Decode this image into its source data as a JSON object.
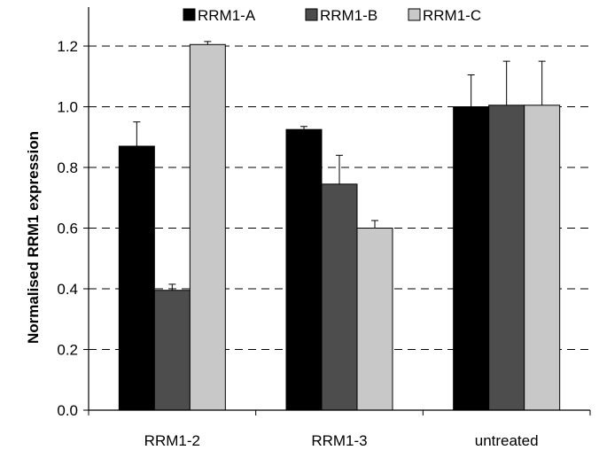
{
  "chart_data": {
    "type": "bar",
    "title": "",
    "xlabel": "",
    "ylabel": "Normalised RRM1 expression",
    "ylim": [
      0,
      1.3
    ],
    "yticks": [
      "0.0",
      "0.2",
      "0.4",
      "0.6",
      "0.8",
      "1.0",
      "1.2"
    ],
    "ytick_values": [
      0,
      0.2,
      0.4,
      0.6,
      0.8,
      1.0,
      1.2
    ],
    "grid": "horizontal dashed",
    "legend_position": "top",
    "categories": [
      "RRM1-2",
      "RRM1-3",
      "untreated"
    ],
    "series": [
      {
        "name": "RRM1-A",
        "color": "#000000",
        "values": [
          0.87,
          0.925,
          1.0
        ],
        "errors": [
          0.08,
          0.01,
          0.105
        ]
      },
      {
        "name": "RRM1-B",
        "color": "#4d4d4d",
        "values": [
          0.395,
          0.745,
          1.005
        ],
        "errors": [
          0.02,
          0.095,
          0.145
        ]
      },
      {
        "name": "RRM1-C",
        "color": "#c8c8c8",
        "values": [
          1.205,
          0.6,
          1.005
        ],
        "errors": [
          0.01,
          0.025,
          0.145
        ]
      }
    ]
  }
}
